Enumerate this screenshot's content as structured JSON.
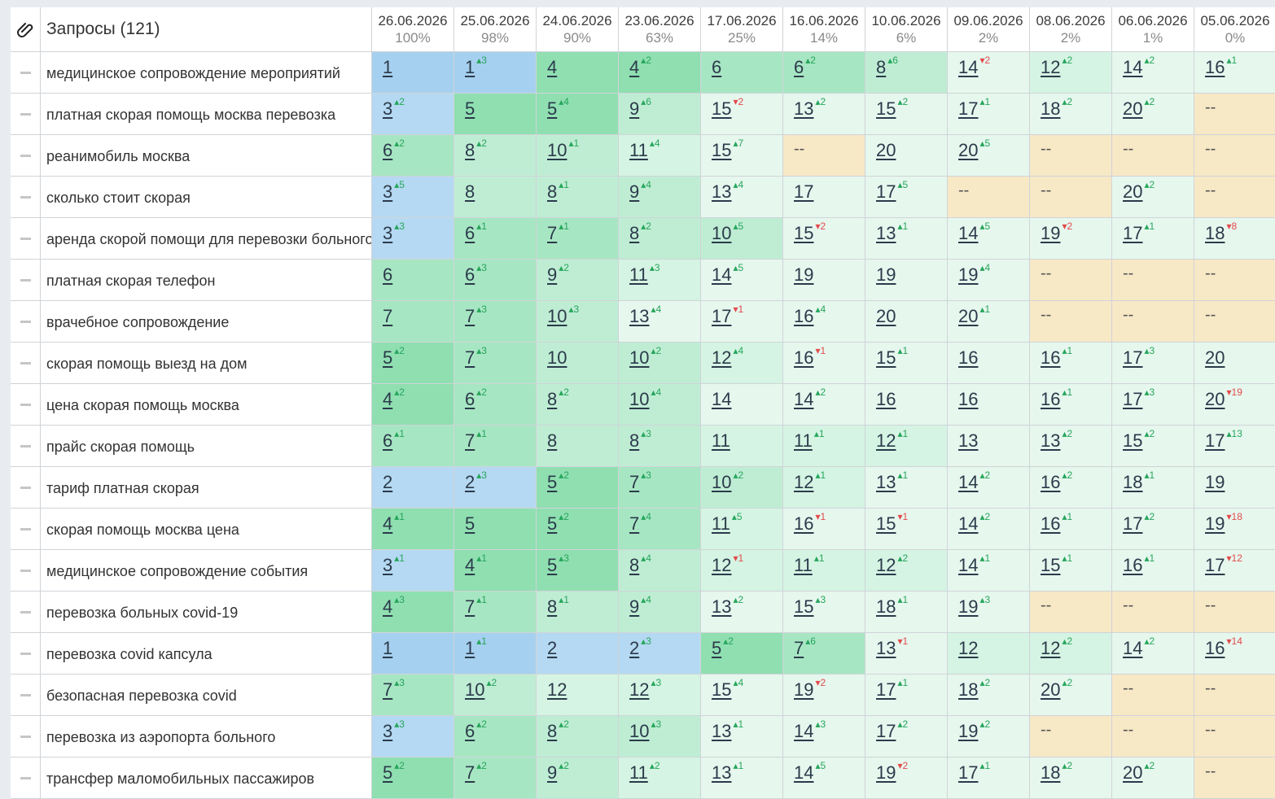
{
  "header": {
    "icon": "paperclip-icon",
    "title": "Запросы (121)",
    "dates": [
      {
        "date": "26.06.2026",
        "pct": "100%"
      },
      {
        "date": "25.06.2026",
        "pct": "98%"
      },
      {
        "date": "24.06.2026",
        "pct": "90%"
      },
      {
        "date": "23.06.2026",
        "pct": "63%"
      },
      {
        "date": "17.06.2026",
        "pct": "25%"
      },
      {
        "date": "16.06.2026",
        "pct": "14%"
      },
      {
        "date": "10.06.2026",
        "pct": "6%"
      },
      {
        "date": "09.06.2026",
        "pct": "2%"
      },
      {
        "date": "08.06.2026",
        "pct": "2%"
      },
      {
        "date": "06.06.2026",
        "pct": "1%"
      },
      {
        "date": "05.06.2026",
        "pct": "0%"
      }
    ]
  },
  "colors": {
    "top3": "#a6d0ef",
    "top5": "#8fdfb1",
    "top10": "#bfedd4",
    "top20": "#e6f7ee",
    "not_found": "#f7e8c6",
    "delta_up": "#26a65b",
    "delta_down": "#e34a4a"
  },
  "rows": [
    {
      "keyword": "медицинское сопровождение мероприятий",
      "cells": [
        [
          "1",
          "",
          ""
        ],
        [
          "1",
          "3",
          "up"
        ],
        [
          "4",
          "",
          ""
        ],
        [
          "4",
          "2",
          "up"
        ],
        [
          "6",
          "",
          ""
        ],
        [
          "6",
          "2",
          "up"
        ],
        [
          "8",
          "6",
          "up"
        ],
        [
          "14",
          "2",
          "down"
        ],
        [
          "12",
          "2",
          "up"
        ],
        [
          "14",
          "2",
          "up"
        ],
        [
          "16",
          "1",
          "up"
        ]
      ]
    },
    {
      "keyword": "платная скорая помощь москва перевозка",
      "cells": [
        [
          "3",
          "2",
          "up"
        ],
        [
          "5",
          "",
          ""
        ],
        [
          "5",
          "4",
          "up"
        ],
        [
          "9",
          "6",
          "up"
        ],
        [
          "15",
          "2",
          "down"
        ],
        [
          "13",
          "2",
          "up"
        ],
        [
          "15",
          "2",
          "up"
        ],
        [
          "17",
          "1",
          "up"
        ],
        [
          "18",
          "2",
          "up"
        ],
        [
          "20",
          "2",
          "up"
        ],
        [
          "--",
          "",
          ""
        ]
      ]
    },
    {
      "keyword": "реанимобиль москва",
      "cells": [
        [
          "6",
          "2",
          "up"
        ],
        [
          "8",
          "2",
          "up"
        ],
        [
          "10",
          "1",
          "up"
        ],
        [
          "11",
          "4",
          "up"
        ],
        [
          "15",
          "7",
          "up"
        ],
        [
          "--",
          "",
          ""
        ],
        [
          "20",
          "",
          ""
        ],
        [
          "20",
          "5",
          "up"
        ],
        [
          "--",
          "",
          ""
        ],
        [
          "--",
          "",
          ""
        ],
        [
          "--",
          "",
          ""
        ]
      ]
    },
    {
      "keyword": "сколько стоит скорая",
      "cells": [
        [
          "3",
          "5",
          "up"
        ],
        [
          "8",
          "",
          ""
        ],
        [
          "8",
          "1",
          "up"
        ],
        [
          "9",
          "4",
          "up"
        ],
        [
          "13",
          "4",
          "up"
        ],
        [
          "17",
          "",
          ""
        ],
        [
          "17",
          "5",
          "up"
        ],
        [
          "--",
          "",
          ""
        ],
        [
          "--",
          "",
          ""
        ],
        [
          "20",
          "2",
          "up"
        ],
        [
          "--",
          "",
          ""
        ]
      ]
    },
    {
      "keyword": "аренда скорой помощи для перевозки больного",
      "cells": [
        [
          "3",
          "3",
          "up"
        ],
        [
          "6",
          "1",
          "up"
        ],
        [
          "7",
          "1",
          "up"
        ],
        [
          "8",
          "2",
          "up"
        ],
        [
          "10",
          "5",
          "up"
        ],
        [
          "15",
          "2",
          "down"
        ],
        [
          "13",
          "1",
          "up"
        ],
        [
          "14",
          "5",
          "up"
        ],
        [
          "19",
          "2",
          "down"
        ],
        [
          "17",
          "1",
          "up"
        ],
        [
          "18",
          "8",
          "down"
        ]
      ]
    },
    {
      "keyword": "платная скорая телефон",
      "cells": [
        [
          "6",
          "",
          ""
        ],
        [
          "6",
          "3",
          "up"
        ],
        [
          "9",
          "2",
          "up"
        ],
        [
          "11",
          "3",
          "up"
        ],
        [
          "14",
          "5",
          "up"
        ],
        [
          "19",
          "",
          ""
        ],
        [
          "19",
          "",
          ""
        ],
        [
          "19",
          "4",
          "up"
        ],
        [
          "--",
          "",
          ""
        ],
        [
          "--",
          "",
          ""
        ],
        [
          "--",
          "",
          ""
        ]
      ]
    },
    {
      "keyword": "врачебное сопровождение",
      "cells": [
        [
          "7",
          "",
          ""
        ],
        [
          "7",
          "3",
          "up"
        ],
        [
          "10",
          "3",
          "up"
        ],
        [
          "13",
          "4",
          "up"
        ],
        [
          "17",
          "1",
          "down"
        ],
        [
          "16",
          "4",
          "up"
        ],
        [
          "20",
          "",
          ""
        ],
        [
          "20",
          "1",
          "up"
        ],
        [
          "--",
          "",
          ""
        ],
        [
          "--",
          "",
          ""
        ],
        [
          "--",
          "",
          ""
        ]
      ]
    },
    {
      "keyword": "скорая помощь выезд на дом",
      "cells": [
        [
          "5",
          "2",
          "up"
        ],
        [
          "7",
          "3",
          "up"
        ],
        [
          "10",
          "",
          ""
        ],
        [
          "10",
          "2",
          "up"
        ],
        [
          "12",
          "4",
          "up"
        ],
        [
          "16",
          "1",
          "down"
        ],
        [
          "15",
          "1",
          "up"
        ],
        [
          "16",
          "",
          ""
        ],
        [
          "16",
          "1",
          "up"
        ],
        [
          "17",
          "3",
          "up"
        ],
        [
          "20",
          "",
          ""
        ]
      ]
    },
    {
      "keyword": "цена скорая помощь москва",
      "cells": [
        [
          "4",
          "2",
          "up"
        ],
        [
          "6",
          "2",
          "up"
        ],
        [
          "8",
          "2",
          "up"
        ],
        [
          "10",
          "4",
          "up"
        ],
        [
          "14",
          "",
          ""
        ],
        [
          "14",
          "2",
          "up"
        ],
        [
          "16",
          "",
          ""
        ],
        [
          "16",
          "",
          ""
        ],
        [
          "16",
          "1",
          "up"
        ],
        [
          "17",
          "3",
          "up"
        ],
        [
          "20",
          "19",
          "down"
        ]
      ]
    },
    {
      "keyword": "прайс скорая помощь",
      "cells": [
        [
          "6",
          "1",
          "up"
        ],
        [
          "7",
          "1",
          "up"
        ],
        [
          "8",
          "",
          ""
        ],
        [
          "8",
          "3",
          "up"
        ],
        [
          "11",
          "",
          ""
        ],
        [
          "11",
          "1",
          "up"
        ],
        [
          "12",
          "1",
          "up"
        ],
        [
          "13",
          "",
          ""
        ],
        [
          "13",
          "2",
          "up"
        ],
        [
          "15",
          "2",
          "up"
        ],
        [
          "17",
          "13",
          "up"
        ]
      ]
    },
    {
      "keyword": "тариф платная скорая",
      "cells": [
        [
          "2",
          "",
          ""
        ],
        [
          "2",
          "3",
          "up"
        ],
        [
          "5",
          "2",
          "up"
        ],
        [
          "7",
          "3",
          "up"
        ],
        [
          "10",
          "2",
          "up"
        ],
        [
          "12",
          "1",
          "up"
        ],
        [
          "13",
          "1",
          "up"
        ],
        [
          "14",
          "2",
          "up"
        ],
        [
          "16",
          "2",
          "up"
        ],
        [
          "18",
          "1",
          "up"
        ],
        [
          "19",
          "",
          ""
        ]
      ]
    },
    {
      "keyword": "скорая помощь москва цена",
      "cells": [
        [
          "4",
          "1",
          "up"
        ],
        [
          "5",
          "",
          ""
        ],
        [
          "5",
          "2",
          "up"
        ],
        [
          "7",
          "4",
          "up"
        ],
        [
          "11",
          "5",
          "up"
        ],
        [
          "16",
          "1",
          "down"
        ],
        [
          "15",
          "1",
          "down"
        ],
        [
          "14",
          "2",
          "up"
        ],
        [
          "16",
          "1",
          "up"
        ],
        [
          "17",
          "2",
          "up"
        ],
        [
          "19",
          "18",
          "down"
        ]
      ]
    },
    {
      "keyword": "медицинское сопровождение события",
      "cells": [
        [
          "3",
          "1",
          "up"
        ],
        [
          "4",
          "1",
          "up"
        ],
        [
          "5",
          "3",
          "up"
        ],
        [
          "8",
          "4",
          "up"
        ],
        [
          "12",
          "1",
          "down"
        ],
        [
          "11",
          "1",
          "up"
        ],
        [
          "12",
          "2",
          "up"
        ],
        [
          "14",
          "1",
          "up"
        ],
        [
          "15",
          "1",
          "up"
        ],
        [
          "16",
          "1",
          "up"
        ],
        [
          "17",
          "12",
          "down"
        ]
      ]
    },
    {
      "keyword": "перевозка больных covid-19",
      "cells": [
        [
          "4",
          "3",
          "up"
        ],
        [
          "7",
          "1",
          "up"
        ],
        [
          "8",
          "1",
          "up"
        ],
        [
          "9",
          "4",
          "up"
        ],
        [
          "13",
          "2",
          "up"
        ],
        [
          "15",
          "3",
          "up"
        ],
        [
          "18",
          "1",
          "up"
        ],
        [
          "19",
          "3",
          "up"
        ],
        [
          "--",
          "",
          ""
        ],
        [
          "--",
          "",
          ""
        ],
        [
          "--",
          "",
          ""
        ]
      ]
    },
    {
      "keyword": "перевозка covid капсула",
      "cells": [
        [
          "1",
          "",
          ""
        ],
        [
          "1",
          "1",
          "up"
        ],
        [
          "2",
          "",
          ""
        ],
        [
          "2",
          "3",
          "up"
        ],
        [
          "5",
          "2",
          "up"
        ],
        [
          "7",
          "6",
          "up"
        ],
        [
          "13",
          "1",
          "down"
        ],
        [
          "12",
          "",
          ""
        ],
        [
          "12",
          "2",
          "up"
        ],
        [
          "14",
          "2",
          "up"
        ],
        [
          "16",
          "14",
          "down"
        ]
      ]
    },
    {
      "keyword": "безопасная перевозка covid",
      "cells": [
        [
          "7",
          "3",
          "up"
        ],
        [
          "10",
          "2",
          "up"
        ],
        [
          "12",
          "",
          ""
        ],
        [
          "12",
          "3",
          "up"
        ],
        [
          "15",
          "4",
          "up"
        ],
        [
          "19",
          "2",
          "down"
        ],
        [
          "17",
          "1",
          "up"
        ],
        [
          "18",
          "2",
          "up"
        ],
        [
          "20",
          "2",
          "up"
        ],
        [
          "--",
          "",
          ""
        ],
        [
          "--",
          "",
          ""
        ]
      ]
    },
    {
      "keyword": "перевозка из аэропорта больного",
      "cells": [
        [
          "3",
          "3",
          "up"
        ],
        [
          "6",
          "2",
          "up"
        ],
        [
          "8",
          "2",
          "up"
        ],
        [
          "10",
          "3",
          "up"
        ],
        [
          "13",
          "1",
          "up"
        ],
        [
          "14",
          "3",
          "up"
        ],
        [
          "17",
          "2",
          "up"
        ],
        [
          "19",
          "2",
          "up"
        ],
        [
          "--",
          "",
          ""
        ],
        [
          "--",
          "",
          ""
        ],
        [
          "--",
          "",
          ""
        ]
      ]
    },
    {
      "keyword": "трансфер маломобильных пассажиров",
      "cells": [
        [
          "5",
          "2",
          "up"
        ],
        [
          "7",
          "2",
          "up"
        ],
        [
          "9",
          "2",
          "up"
        ],
        [
          "11",
          "2",
          "up"
        ],
        [
          "13",
          "1",
          "up"
        ],
        [
          "14",
          "5",
          "up"
        ],
        [
          "19",
          "2",
          "down"
        ],
        [
          "17",
          "1",
          "up"
        ],
        [
          "18",
          "2",
          "up"
        ],
        [
          "20",
          "2",
          "up"
        ],
        [
          "--",
          "",
          ""
        ]
      ]
    }
  ]
}
